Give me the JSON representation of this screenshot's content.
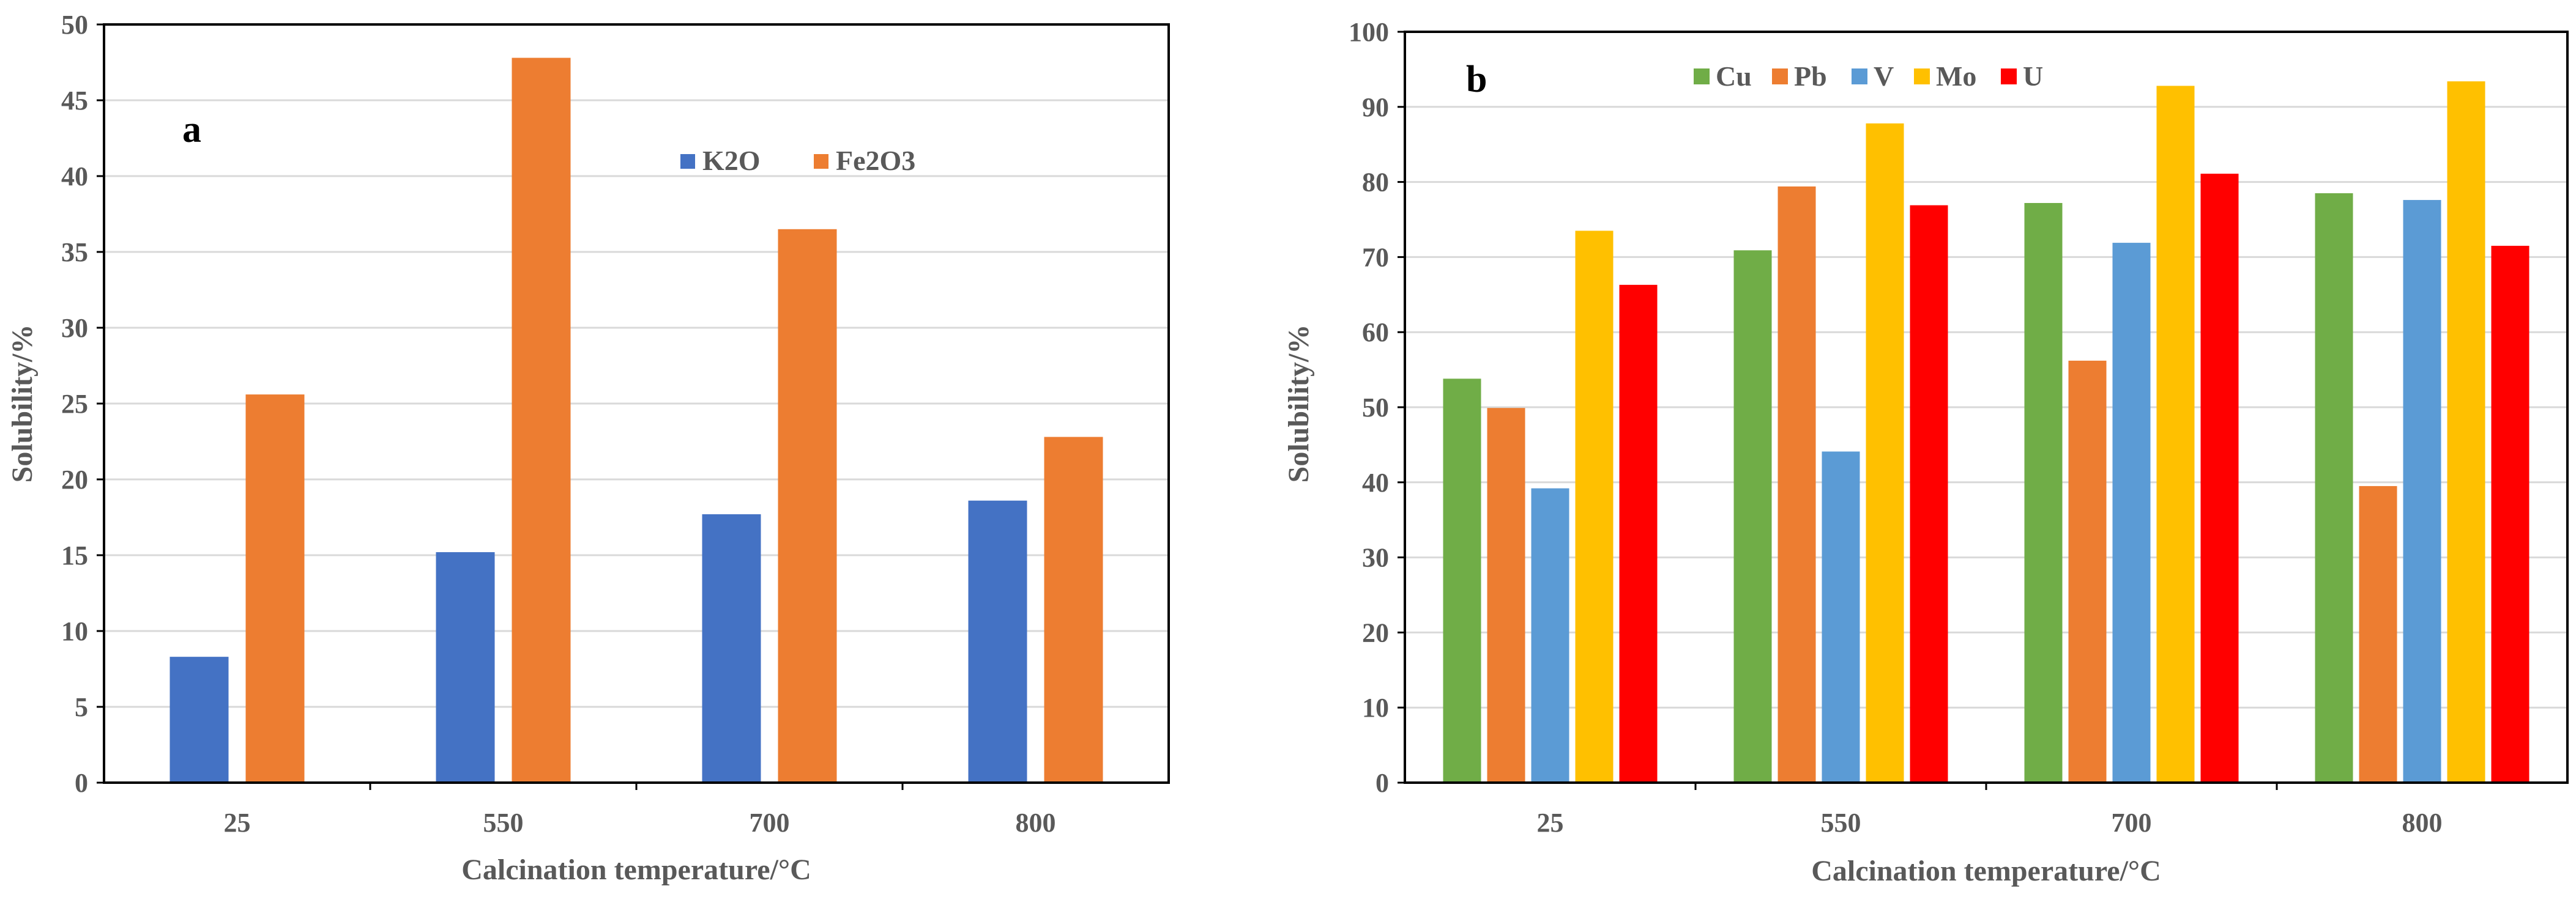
{
  "chart_data": [
    {
      "type": "bar",
      "panel_label": "a",
      "categories": [
        "25",
        "550",
        "700",
        "800"
      ],
      "series": [
        {
          "name": "K2O",
          "color": "#4472C4",
          "values": [
            8.3,
            15.2,
            17.7,
            18.6
          ]
        },
        {
          "name": "Fe2O3",
          "color": "#ED7D31",
          "values": [
            25.6,
            47.8,
            36.5,
            22.8
          ]
        }
      ],
      "xlabel": "Calcination temperature/°C",
      "ylabel": "Solubility/%",
      "ylim": [
        0,
        50
      ],
      "yticks": [
        "0",
        "5",
        "10",
        "15",
        "20",
        "25",
        "30",
        "35",
        "40",
        "45",
        "50"
      ],
      "grid": true,
      "legend_position": "top-center"
    },
    {
      "type": "bar",
      "panel_label": "b",
      "categories": [
        "25",
        "550",
        "700",
        "800"
      ],
      "series": [
        {
          "name": "Cu",
          "color": "#70AD47",
          "values": [
            53.8,
            70.9,
            77.2,
            78.5
          ]
        },
        {
          "name": "Pb",
          "color": "#ED7D31",
          "values": [
            49.9,
            79.4,
            56.2,
            39.5
          ]
        },
        {
          "name": "V",
          "color": "#5B9BD5",
          "values": [
            39.2,
            44.1,
            71.9,
            77.6
          ]
        },
        {
          "name": "Mo",
          "color": "#FFC000",
          "values": [
            73.5,
            87.8,
            92.8,
            93.4
          ]
        },
        {
          "name": "U",
          "color": "#FF0000",
          "values": [
            66.3,
            76.9,
            81.1,
            71.5
          ]
        }
      ],
      "xlabel": "Calcination temperature/°C",
      "ylabel": "Solubility/%",
      "ylim": [
        0,
        100
      ],
      "yticks": [
        "0",
        "10",
        "20",
        "30",
        "40",
        "50",
        "60",
        "70",
        "80",
        "90",
        "100"
      ],
      "grid": true,
      "legend_position": "top-left"
    }
  ]
}
